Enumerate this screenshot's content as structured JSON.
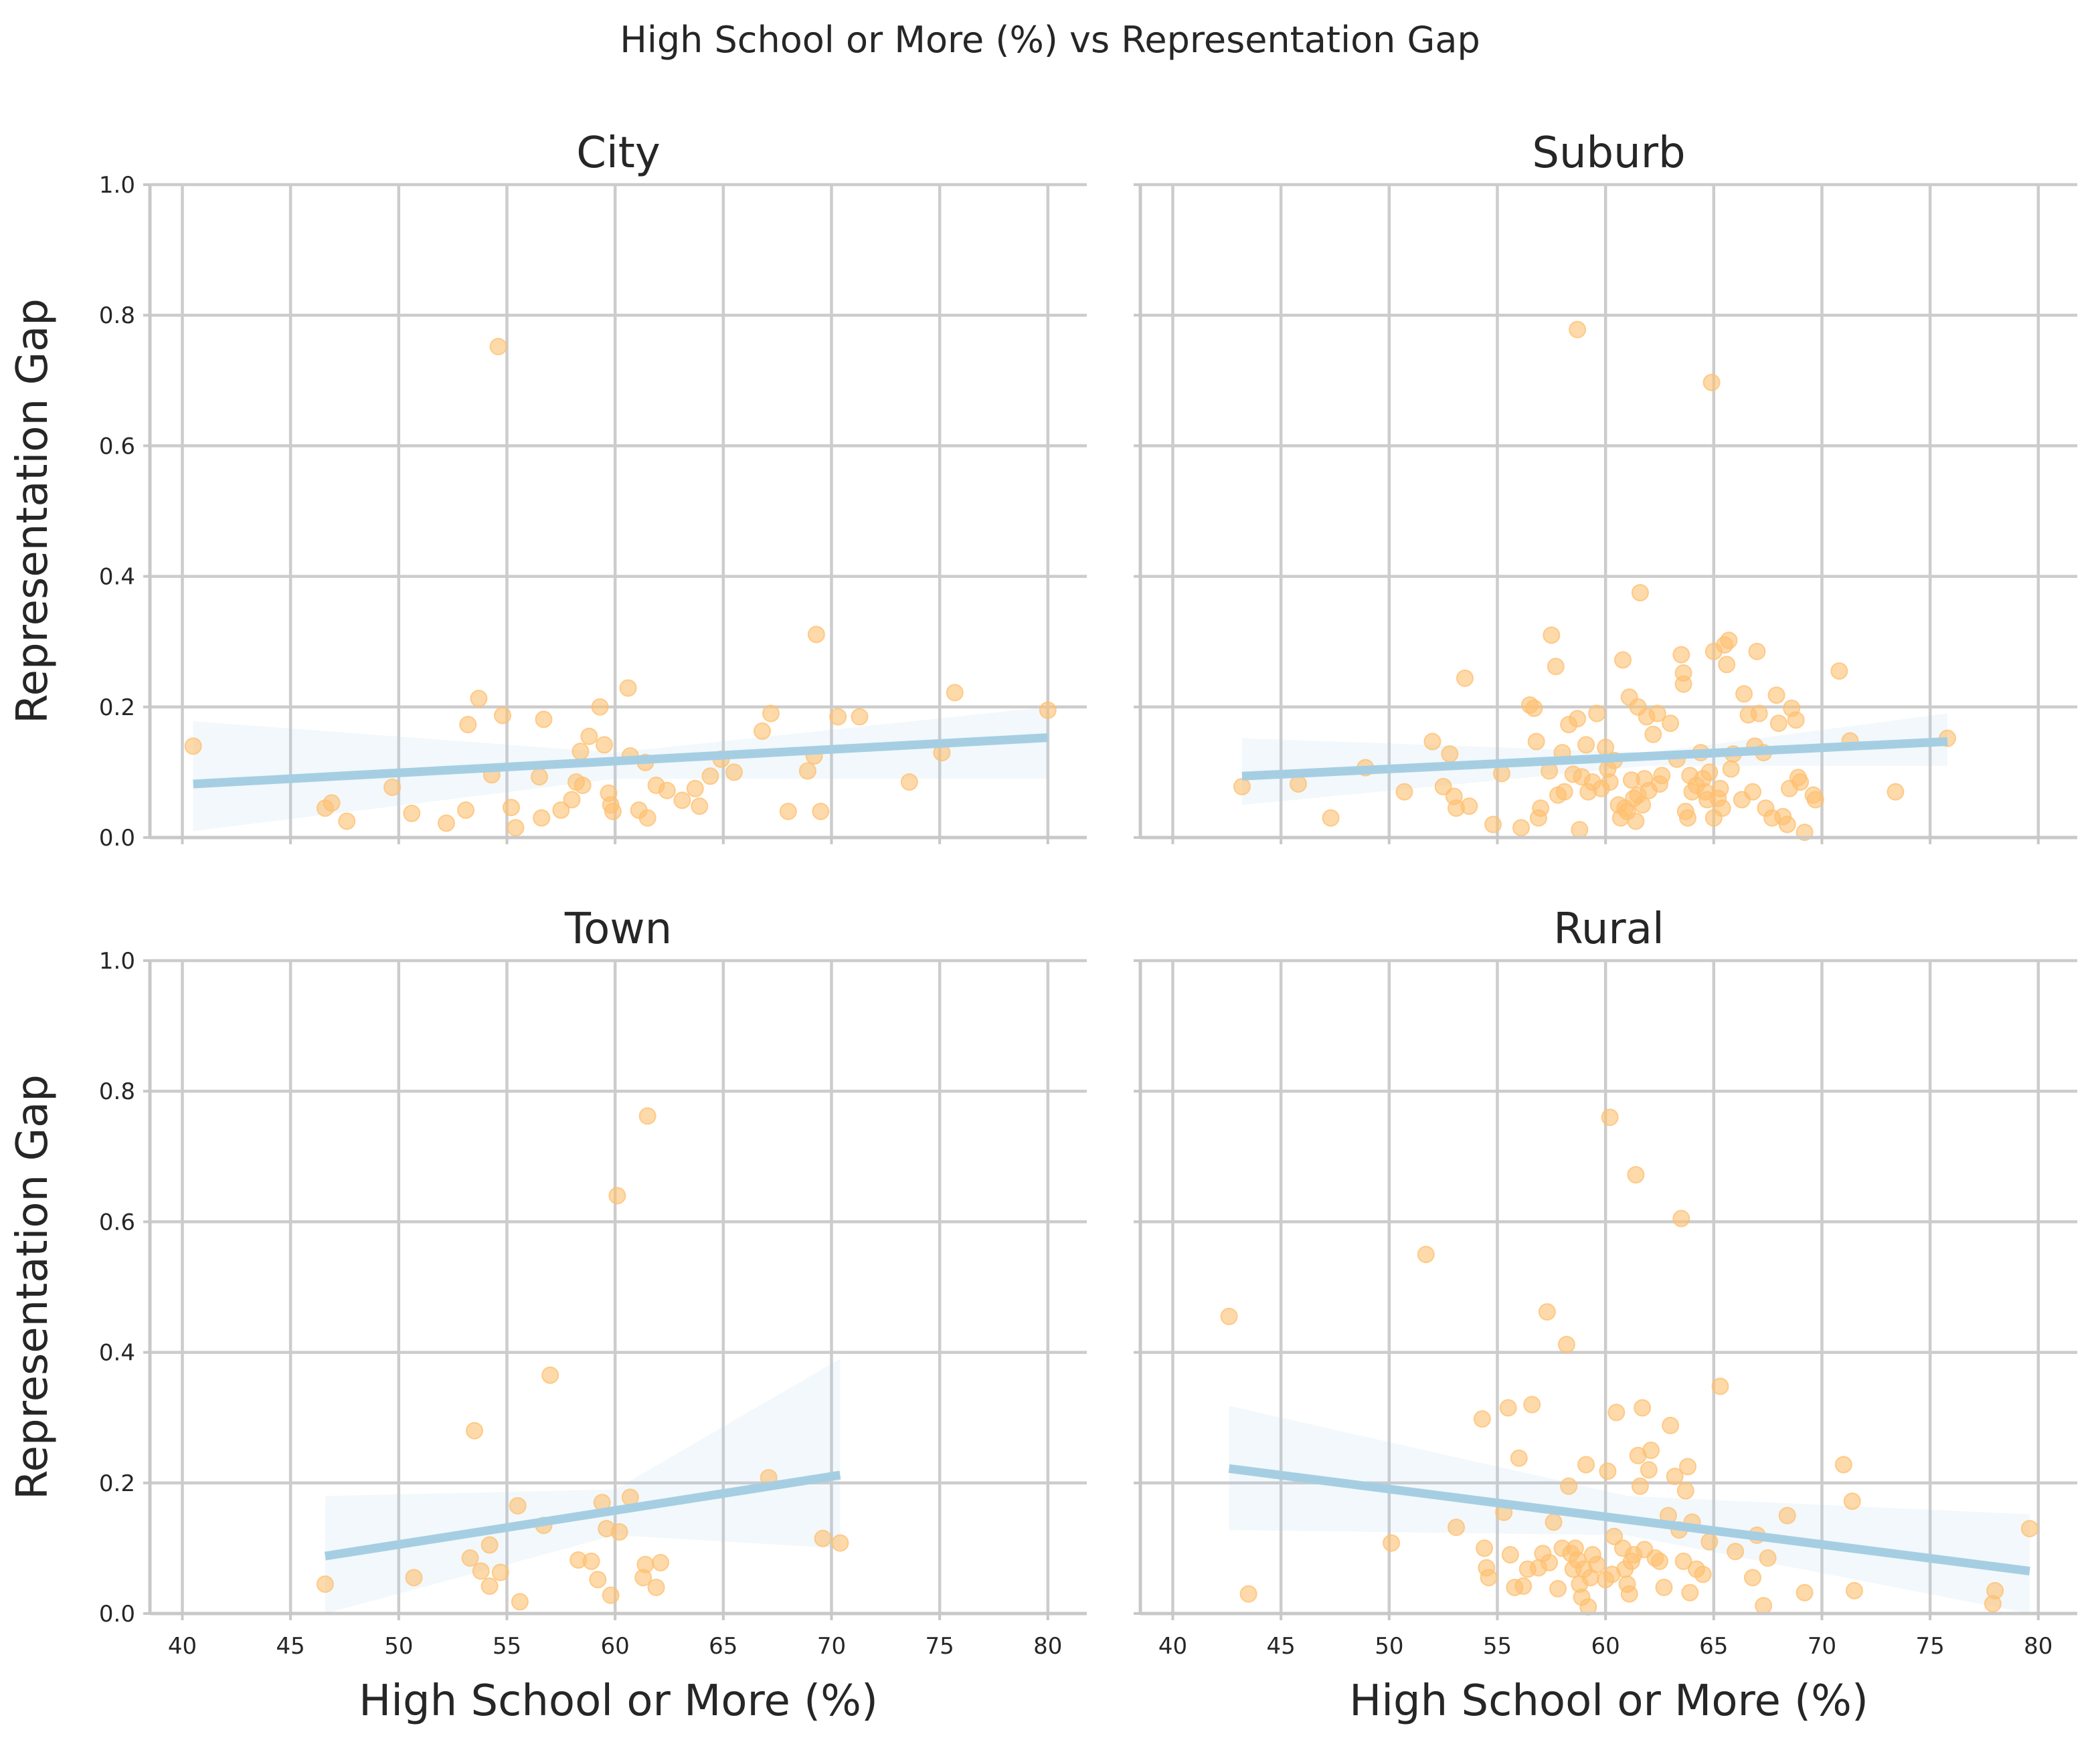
{
  "figure": {
    "suptitle": "High School or More (%) vs Representation Gap",
    "colors": {
      "points": "#fdbf6f",
      "fit_line": "#a6cee3",
      "grid": "#cccccc"
    }
  },
  "chart_data": [
    {
      "type": "scatter",
      "title": "City",
      "xlabel": "",
      "ylabel": "Representation Gap",
      "xlim": [
        38.5,
        81.8
      ],
      "ylim": [
        0,
        1
      ],
      "xticks": [
        40,
        45,
        50,
        55,
        60,
        65,
        70,
        75,
        80
      ],
      "yticks": [
        0.0,
        0.2,
        0.4,
        0.6,
        0.8,
        1.0
      ],
      "grid": true,
      "points": [
        [
          40.5,
          0.14
        ],
        [
          46.6,
          0.045
        ],
        [
          46.9,
          0.053
        ],
        [
          47.6,
          0.025
        ],
        [
          49.7,
          0.077
        ],
        [
          50.6,
          0.037
        ],
        [
          52.2,
          0.022
        ],
        [
          53.1,
          0.042
        ],
        [
          53.2,
          0.173
        ],
        [
          53.7,
          0.213
        ],
        [
          54.3,
          0.096
        ],
        [
          54.6,
          0.752
        ],
        [
          54.8,
          0.187
        ],
        [
          55.2,
          0.046
        ],
        [
          55.4,
          0.015
        ],
        [
          56.5,
          0.093
        ],
        [
          56.6,
          0.03
        ],
        [
          56.7,
          0.181
        ],
        [
          57.5,
          0.042
        ],
        [
          58,
          0.058
        ],
        [
          58.2,
          0.085
        ],
        [
          58.4,
          0.132
        ],
        [
          58.5,
          0.08
        ],
        [
          58.8,
          0.155
        ],
        [
          59.3,
          0.2
        ],
        [
          59.5,
          0.142
        ],
        [
          59.7,
          0.068
        ],
        [
          59.8,
          0.05
        ],
        [
          59.9,
          0.04
        ],
        [
          60.6,
          0.229
        ],
        [
          60.7,
          0.125
        ],
        [
          61.1,
          0.042
        ],
        [
          61.4,
          0.115
        ],
        [
          61.5,
          0.03
        ],
        [
          61.9,
          0.08
        ],
        [
          62.4,
          0.072
        ],
        [
          63.1,
          0.057
        ],
        [
          63.7,
          0.075
        ],
        [
          63.9,
          0.048
        ],
        [
          64.4,
          0.094
        ],
        [
          64.9,
          0.12
        ],
        [
          65.5,
          0.1
        ],
        [
          66.8,
          0.163
        ],
        [
          67.2,
          0.19
        ],
        [
          68,
          0.04
        ],
        [
          68.9,
          0.102
        ],
        [
          69.2,
          0.125
        ],
        [
          69.3,
          0.311
        ],
        [
          69.5,
          0.04
        ],
        [
          70.3,
          0.185
        ],
        [
          71.3,
          0.185
        ],
        [
          73.6,
          0.085
        ],
        [
          75.1,
          0.13
        ],
        [
          75.7,
          0.222
        ],
        [
          80,
          0.195
        ]
      ],
      "fit": {
        "x": [
          40.5,
          80
        ],
        "y": [
          0.082,
          0.153
        ]
      },
      "band": {
        "x": [
          40.5,
          60,
          80
        ],
        "lower": [
          0.01,
          0.09,
          0.09
        ],
        "upper": [
          0.178,
          0.13,
          0.2
        ]
      }
    },
    {
      "type": "scatter",
      "title": "Suburb",
      "xlabel": "",
      "ylabel": "",
      "xlim": [
        38.5,
        81.8
      ],
      "ylim": [
        0,
        1
      ],
      "xticks": [
        40,
        45,
        50,
        55,
        60,
        65,
        70,
        75,
        80
      ],
      "yticks": [
        0.0,
        0.2,
        0.4,
        0.6,
        0.8,
        1.0
      ],
      "grid": true,
      "points": [
        [
          43.2,
          0.078
        ],
        [
          45.8,
          0.082
        ],
        [
          47.3,
          0.03
        ],
        [
          48.9,
          0.107
        ],
        [
          50.7,
          0.07
        ],
        [
          52,
          0.147
        ],
        [
          52.5,
          0.078
        ],
        [
          52.8,
          0.128
        ],
        [
          53,
          0.063
        ],
        [
          53.1,
          0.045
        ],
        [
          53.5,
          0.244
        ],
        [
          53.7,
          0.048
        ],
        [
          54.8,
          0.02
        ],
        [
          55.2,
          0.098
        ],
        [
          56.1,
          0.015
        ],
        [
          56.5,
          0.203
        ],
        [
          56.7,
          0.198
        ],
        [
          56.8,
          0.147
        ],
        [
          56.9,
          0.03
        ],
        [
          57,
          0.045
        ],
        [
          57.4,
          0.102
        ],
        [
          57.5,
          0.31
        ],
        [
          57.7,
          0.262
        ],
        [
          57.8,
          0.065
        ],
        [
          58,
          0.13
        ],
        [
          58.1,
          0.07
        ],
        [
          58.3,
          0.173
        ],
        [
          58.5,
          0.097
        ],
        [
          58.7,
          0.182
        ],
        [
          58.8,
          0.012
        ],
        [
          58.9,
          0.093
        ],
        [
          59.1,
          0.142
        ],
        [
          59.2,
          0.07
        ],
        [
          59.4,
          0.085
        ],
        [
          59.6,
          0.19
        ],
        [
          59.8,
          0.075
        ],
        [
          60,
          0.138
        ],
        [
          60.1,
          0.105
        ],
        [
          60.2,
          0.085
        ],
        [
          60.4,
          0.118
        ],
        [
          60.6,
          0.05
        ],
        [
          60.7,
          0.03
        ],
        [
          60.8,
          0.272
        ],
        [
          60.9,
          0.045
        ],
        [
          61,
          0.04
        ],
        [
          61.1,
          0.215
        ],
        [
          61.2,
          0.088
        ],
        [
          61.3,
          0.06
        ],
        [
          61.4,
          0.025
        ],
        [
          61.5,
          0.065
        ],
        [
          61.5,
          0.2
        ],
        [
          61.6,
          0.375
        ],
        [
          61.7,
          0.05
        ],
        [
          61.8,
          0.09
        ],
        [
          61.9,
          0.185
        ],
        [
          62,
          0.072
        ],
        [
          62.2,
          0.158
        ],
        [
          62.4,
          0.19
        ],
        [
          62.5,
          0.082
        ],
        [
          62.6,
          0.095
        ],
        [
          63,
          0.175
        ],
        [
          63.3,
          0.12
        ],
        [
          63.5,
          0.28
        ],
        [
          63.6,
          0.252
        ],
        [
          63.6,
          0.235
        ],
        [
          63.7,
          0.04
        ],
        [
          63.8,
          0.03
        ],
        [
          63.9,
          0.095
        ],
        [
          64,
          0.07
        ],
        [
          64.2,
          0.08
        ],
        [
          64.4,
          0.13
        ],
        [
          64.5,
          0.09
        ],
        [
          64.6,
          0.07
        ],
        [
          64.7,
          0.058
        ],
        [
          64.8,
          0.1
        ],
        [
          65,
          0.285
        ],
        [
          65,
          0.03
        ],
        [
          65.2,
          0.06
        ],
        [
          65.3,
          0.075
        ],
        [
          65.4,
          0.045
        ],
        [
          65.5,
          0.295
        ],
        [
          65.6,
          0.265
        ],
        [
          65.7,
          0.302
        ],
        [
          65.8,
          0.105
        ],
        [
          65.9,
          0.128
        ],
        [
          66.3,
          0.058
        ],
        [
          66.4,
          0.22
        ],
        [
          66.6,
          0.188
        ],
        [
          66.8,
          0.07
        ],
        [
          66.9,
          0.14
        ],
        [
          67,
          0.285
        ],
        [
          67.1,
          0.19
        ],
        [
          67.3,
          0.13
        ],
        [
          67.4,
          0.045
        ],
        [
          67.7,
          0.03
        ],
        [
          67.9,
          0.218
        ],
        [
          68,
          0.175
        ],
        [
          68.2,
          0.032
        ],
        [
          68.4,
          0.02
        ],
        [
          68.5,
          0.075
        ],
        [
          68.6,
          0.198
        ],
        [
          68.8,
          0.18
        ],
        [
          68.9,
          0.092
        ],
        [
          69,
          0.085
        ],
        [
          69.2,
          0.008
        ],
        [
          69.6,
          0.065
        ],
        [
          69.7,
          0.058
        ],
        [
          70.8,
          0.255
        ],
        [
          71.3,
          0.148
        ],
        [
          73.4,
          0.07
        ],
        [
          75.8,
          0.152
        ],
        [
          58.7,
          0.778
        ],
        [
          64.9,
          0.697
        ]
      ],
      "fit": {
        "x": [
          43.2,
          75.8
        ],
        "y": [
          0.094,
          0.147
        ]
      },
      "band": {
        "x": [
          43.2,
          62,
          75.8
        ],
        "lower": [
          0.05,
          0.11,
          0.11
        ],
        "upper": [
          0.152,
          0.13,
          0.19
        ]
      }
    },
    {
      "type": "scatter",
      "title": "Town",
      "xlabel": "High School or More (%)",
      "ylabel": "Representation Gap",
      "xlim": [
        38.5,
        81.8
      ],
      "ylim": [
        0,
        1
      ],
      "xticks": [
        40,
        45,
        50,
        55,
        60,
        65,
        70,
        75,
        80
      ],
      "yticks": [
        0.0,
        0.2,
        0.4,
        0.6,
        0.8,
        1.0
      ],
      "grid": true,
      "points": [
        [
          46.6,
          0.045
        ],
        [
          50.7,
          0.055
        ],
        [
          53.3,
          0.085
        ],
        [
          53.5,
          0.28
        ],
        [
          53.8,
          0.065
        ],
        [
          54.2,
          0.042
        ],
        [
          54.2,
          0.105
        ],
        [
          54.7,
          0.063
        ],
        [
          55.5,
          0.165
        ],
        [
          55.6,
          0.018
        ],
        [
          56.7,
          0.135
        ],
        [
          57,
          0.365
        ],
        [
          58.3,
          0.082
        ],
        [
          58.9,
          0.08
        ],
        [
          59.2,
          0.052
        ],
        [
          59.4,
          0.17
        ],
        [
          59.6,
          0.13
        ],
        [
          59.8,
          0.028
        ],
        [
          60.1,
          0.64
        ],
        [
          60.2,
          0.125
        ],
        [
          60.7,
          0.178
        ],
        [
          61.3,
          0.055
        ],
        [
          61.4,
          0.075
        ],
        [
          61.5,
          0.762
        ],
        [
          61.9,
          0.04
        ],
        [
          62.1,
          0.078
        ],
        [
          67.1,
          0.208
        ],
        [
          69.6,
          0.115
        ],
        [
          70.4,
          0.108
        ]
      ],
      "fit": {
        "x": [
          46.6,
          70.4
        ],
        "y": [
          0.088,
          0.212
        ]
      },
      "band": {
        "x": [
          46.6,
          60,
          70.4
        ],
        "lower": [
          0.0,
          0.12,
          0.1
        ],
        "upper": [
          0.18,
          0.19,
          0.39
        ]
      }
    },
    {
      "type": "scatter",
      "title": "Rural",
      "xlabel": "High School or More (%)",
      "ylabel": "",
      "xlim": [
        38.5,
        81.8
      ],
      "ylim": [
        0,
        1
      ],
      "xticks": [
        40,
        45,
        50,
        55,
        60,
        65,
        70,
        75,
        80
      ],
      "yticks": [
        0.0,
        0.2,
        0.4,
        0.6,
        0.8,
        1.0
      ],
      "grid": true,
      "points": [
        [
          42.6,
          0.455
        ],
        [
          43.5,
          0.03
        ],
        [
          50.1,
          0.108
        ],
        [
          51.7,
          0.55
        ],
        [
          53.1,
          0.132
        ],
        [
          54.3,
          0.298
        ],
        [
          54.4,
          0.1
        ],
        [
          54.5,
          0.07
        ],
        [
          54.6,
          0.055
        ],
        [
          55.3,
          0.155
        ],
        [
          55.5,
          0.315
        ],
        [
          55.6,
          0.09
        ],
        [
          55.8,
          0.04
        ],
        [
          56,
          0.238
        ],
        [
          56.2,
          0.042
        ],
        [
          56.4,
          0.068
        ],
        [
          56.6,
          0.32
        ],
        [
          56.9,
          0.07
        ],
        [
          57.1,
          0.092
        ],
        [
          57.3,
          0.462
        ],
        [
          57.4,
          0.078
        ],
        [
          57.6,
          0.14
        ],
        [
          57.8,
          0.038
        ],
        [
          58,
          0.1
        ],
        [
          58.2,
          0.412
        ],
        [
          58.3,
          0.195
        ],
        [
          58.4,
          0.092
        ],
        [
          58.5,
          0.068
        ],
        [
          58.6,
          0.1
        ],
        [
          58.7,
          0.082
        ],
        [
          58.8,
          0.045
        ],
        [
          58.9,
          0.025
        ],
        [
          59,
          0.068
        ],
        [
          59.1,
          0.228
        ],
        [
          59.2,
          0.01
        ],
        [
          59.3,
          0.055
        ],
        [
          59.4,
          0.09
        ],
        [
          59.6,
          0.075
        ],
        [
          60,
          0.052
        ],
        [
          60.1,
          0.218
        ],
        [
          60.2,
          0.76
        ],
        [
          60.3,
          0.06
        ],
        [
          60.4,
          0.118
        ],
        [
          60.5,
          0.308
        ],
        [
          60.8,
          0.1
        ],
        [
          60.9,
          0.068
        ],
        [
          61,
          0.045
        ],
        [
          61.1,
          0.03
        ],
        [
          61.2,
          0.08
        ],
        [
          61.3,
          0.09
        ],
        [
          61.4,
          0.672
        ],
        [
          61.5,
          0.242
        ],
        [
          61.6,
          0.195
        ],
        [
          61.7,
          0.315
        ],
        [
          61.8,
          0.098
        ],
        [
          62,
          0.22
        ],
        [
          62.1,
          0.25
        ],
        [
          62.3,
          0.085
        ],
        [
          62.5,
          0.08
        ],
        [
          62.7,
          0.04
        ],
        [
          62.9,
          0.15
        ],
        [
          63,
          0.288
        ],
        [
          63.2,
          0.21
        ],
        [
          63.4,
          0.128
        ],
        [
          63.5,
          0.605
        ],
        [
          63.6,
          0.08
        ],
        [
          63.7,
          0.188
        ],
        [
          63.8,
          0.225
        ],
        [
          63.9,
          0.032
        ],
        [
          64,
          0.14
        ],
        [
          64.2,
          0.068
        ],
        [
          64.5,
          0.06
        ],
        [
          64.8,
          0.11
        ],
        [
          65.3,
          0.348
        ],
        [
          66,
          0.095
        ],
        [
          66.8,
          0.055
        ],
        [
          67,
          0.12
        ],
        [
          67.3,
          0.012
        ],
        [
          67.5,
          0.085
        ],
        [
          68.4,
          0.15
        ],
        [
          69.2,
          0.032
        ],
        [
          71,
          0.228
        ],
        [
          71.4,
          0.172
        ],
        [
          71.5,
          0.035
        ],
        [
          77.9,
          0.015
        ],
        [
          78,
          0.035
        ],
        [
          79.6,
          0.13
        ]
      ],
      "fit": {
        "x": [
          42.6,
          79.6
        ],
        "y": [
          0.222,
          0.065
        ]
      },
      "band": {
        "x": [
          42.6,
          61,
          79.6
        ],
        "lower": [
          0.128,
          0.12,
          0.0
        ],
        "upper": [
          0.318,
          0.18,
          0.152
        ]
      }
    }
  ]
}
